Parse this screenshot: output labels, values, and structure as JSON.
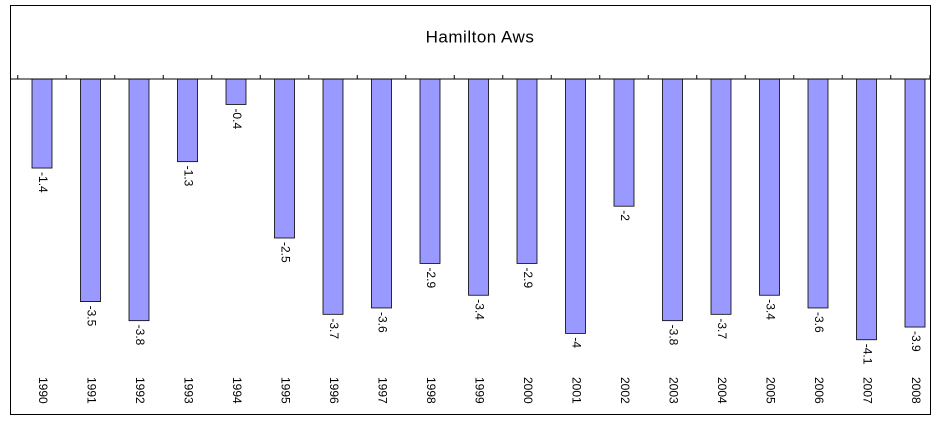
{
  "chart_data": {
    "type": "bar",
    "title": "Hamilton Aws",
    "categories": [
      "1990",
      "1991",
      "1992",
      "1993",
      "1994",
      "1995",
      "1996",
      "1997",
      "1998",
      "1999",
      "2000",
      "2001",
      "2002",
      "2003",
      "2004",
      "2005",
      "2006",
      "2007",
      "2008"
    ],
    "values": [
      -1.4,
      -3.5,
      -3.8,
      -1.3,
      -0.4,
      -2.5,
      -3.7,
      -3.6,
      -2.9,
      -3.4,
      -2.9,
      -4,
      -2,
      -3.8,
      -3.7,
      -3.4,
      -3.6,
      -4.1,
      -3.9
    ],
    "color": "#9999ff",
    "ylim": [
      -5,
      0
    ]
  }
}
